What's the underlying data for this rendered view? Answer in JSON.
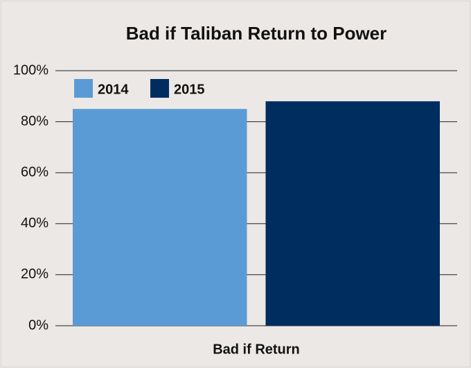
{
  "chart_data": {
    "type": "bar",
    "title": "Bad if Taliban Return to Power",
    "categories": [
      "Bad if Return"
    ],
    "series": [
      {
        "name": "2014",
        "color": "#5b9bd5",
        "values": [
          85
        ]
      },
      {
        "name": "2015",
        "color": "#002d5f",
        "values": [
          88
        ]
      }
    ],
    "ylim": [
      0,
      100
    ],
    "yticks": [
      {
        "value": 0,
        "label": "0%"
      },
      {
        "value": 20,
        "label": "20%"
      },
      {
        "value": 40,
        "label": "40%"
      },
      {
        "value": 60,
        "label": "60%"
      },
      {
        "value": 80,
        "label": "80%"
      },
      {
        "value": 100,
        "label": "100%"
      }
    ],
    "grid": true,
    "legend": "top-left"
  }
}
